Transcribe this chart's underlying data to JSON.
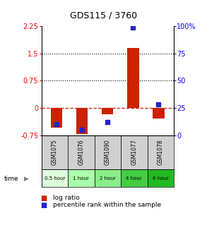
{
  "title": "GDS115 / 3760",
  "samples": [
    "GSM1075",
    "GSM1076",
    "GSM1090",
    "GSM1077",
    "GSM1078"
  ],
  "time_labels": [
    "0.5 hour",
    "1 hour",
    "2 hour",
    "4 hour",
    "6 hour"
  ],
  "time_colors": [
    "#ddffdd",
    "#aaffaa",
    "#88ee88",
    "#44cc44",
    "#22bb22"
  ],
  "log_ratio": [
    -0.55,
    -0.72,
    -0.18,
    1.65,
    -0.3
  ],
  "percentile": [
    10,
    5,
    12,
    99,
    28
  ],
  "ylim_left": [
    -0.75,
    2.25
  ],
  "ylim_right": [
    0,
    100
  ],
  "left_ticks": [
    -0.75,
    0,
    0.75,
    1.5,
    2.25
  ],
  "right_ticks": [
    0,
    25,
    50,
    75,
    100
  ],
  "hlines": [
    0.75,
    1.5
  ],
  "bar_color": "#cc2200",
  "dot_color": "#2222cc",
  "zero_line_color": "#cc2200",
  "bar_width": 0.45,
  "dot_size": 4,
  "figsize": [
    2.93,
    3.36
  ],
  "dpi": 100
}
